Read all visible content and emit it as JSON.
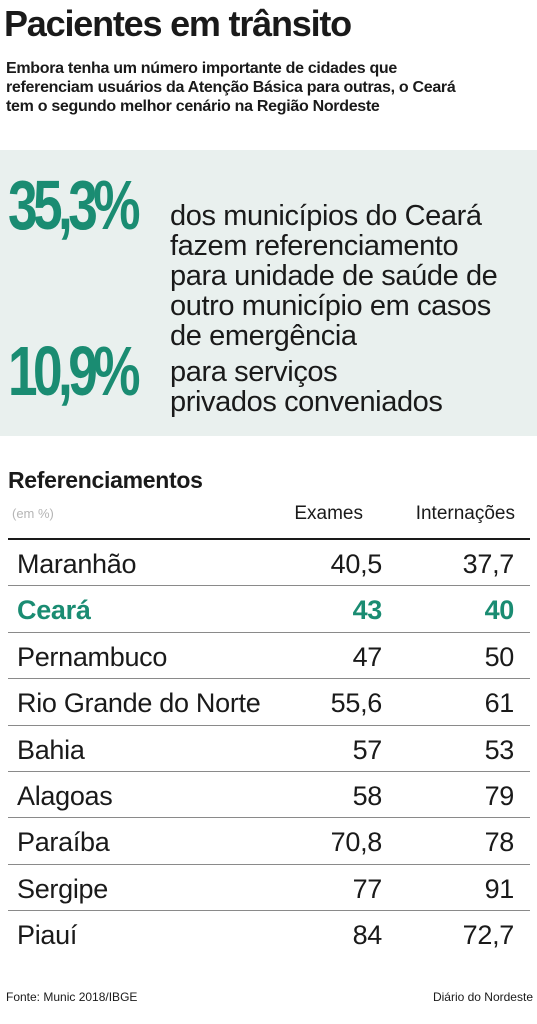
{
  "header": {
    "title": "Pacientes em trânsito",
    "subtitle_lines": [
      "Embora tenha um número importante de cidades que",
      "referenciam usuários da Atenção Básica para outras, o Ceará",
      "tem o segundo melhor cenário na Região Nordeste"
    ]
  },
  "highlights": [
    {
      "value": "35,3%",
      "text_lines": [
        "dos municípios do Ceará",
        "fazem referenciamento",
        "para unidade de saúde de",
        "outro município em casos",
        "de emergência"
      ]
    },
    {
      "value": "10,9%",
      "text_lines": [
        "para serviços",
        "privados conveniados"
      ]
    }
  ],
  "colors": {
    "accent": "#1a8c72",
    "highlight_bg": "#e9f0ee",
    "text": "#1a1a1a",
    "muted": "#b5b5b5"
  },
  "chart_data": {
    "type": "table",
    "title": "Referenciamentos",
    "unit": "(em %)",
    "columns": [
      "Exames",
      "Internações"
    ],
    "highlighted_row": "Ceará",
    "rows": [
      {
        "state": "Maranhão",
        "exames": "40,5",
        "internacoes": "37,7"
      },
      {
        "state": "Ceará",
        "exames": "43",
        "internacoes": "40"
      },
      {
        "state": "Pernambuco",
        "exames": "47",
        "internacoes": "50"
      },
      {
        "state": "Rio Grande do Norte",
        "exames": "55,6",
        "internacoes": "61"
      },
      {
        "state": "Bahia",
        "exames": "57",
        "internacoes": "53"
      },
      {
        "state": "Alagoas",
        "exames": "58",
        "internacoes": "79"
      },
      {
        "state": "Paraíba",
        "exames": "70,8",
        "internacoes": "78"
      },
      {
        "state": "Sergipe",
        "exames": "77",
        "internacoes": "91"
      },
      {
        "state": "Piauí",
        "exames": "84",
        "internacoes": "72,7"
      }
    ]
  },
  "footer": {
    "source": "Fonte: Munic 2018/IBGE",
    "credit": "Diário do Nordeste"
  }
}
